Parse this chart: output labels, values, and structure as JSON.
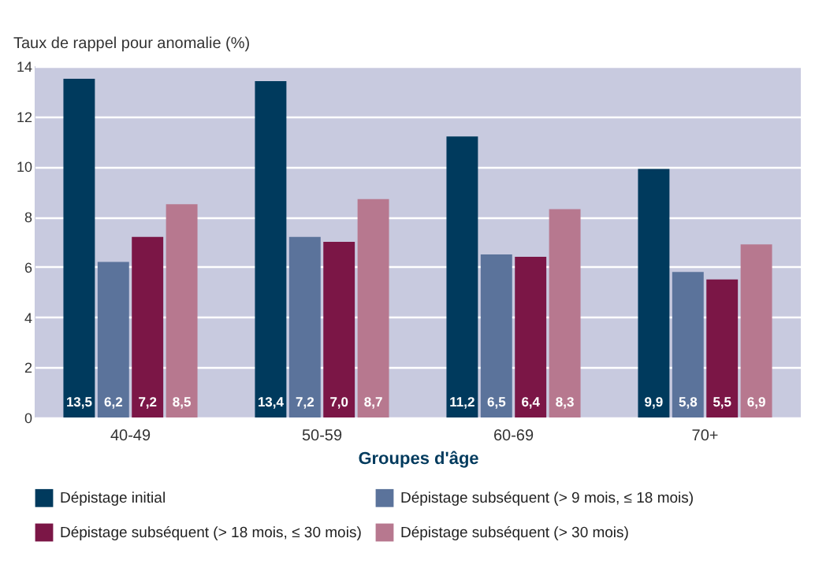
{
  "chart_data": {
    "type": "bar",
    "ylabel": "Taux de rappel pour anomalie (%)",
    "xlabel": "Groupes d'âge",
    "categories": [
      "40-49",
      "50-59",
      "60-69",
      "70+"
    ],
    "series": [
      {
        "name": "Dépistage initial",
        "color": "#003a5d",
        "values": [
          13.5,
          13.4,
          11.2,
          9.9
        ],
        "value_labels": [
          "13,5",
          "13,4",
          "11,2",
          "9,9"
        ]
      },
      {
        "name": "Dépistage subséquent (> 9 mois, ≤ 18 mois)",
        "color": "#5b739b",
        "values": [
          6.2,
          7.2,
          6.5,
          5.8
        ],
        "value_labels": [
          "6,2",
          "7,2",
          "6,5",
          "5,8"
        ]
      },
      {
        "name": "Dépistage subséquent (> 18 mois, ≤ 30 mois)",
        "color": "#7b1646",
        "values": [
          7.2,
          7.0,
          6.4,
          5.5
        ],
        "value_labels": [
          "7,2",
          "7,0",
          "6,4",
          "5,5"
        ]
      },
      {
        "name": "Dépistage subséquent (> 30 mois)",
        "color": "#b7788f",
        "values": [
          8.5,
          8.7,
          8.3,
          6.9
        ],
        "value_labels": [
          "8,5",
          "8,7",
          "8,3",
          "6,9"
        ]
      }
    ],
    "ylim": [
      0,
      14
    ],
    "yticks": [
      0,
      2,
      4,
      6,
      8,
      10,
      12,
      14
    ],
    "grid": "y",
    "legend": "bottom"
  }
}
